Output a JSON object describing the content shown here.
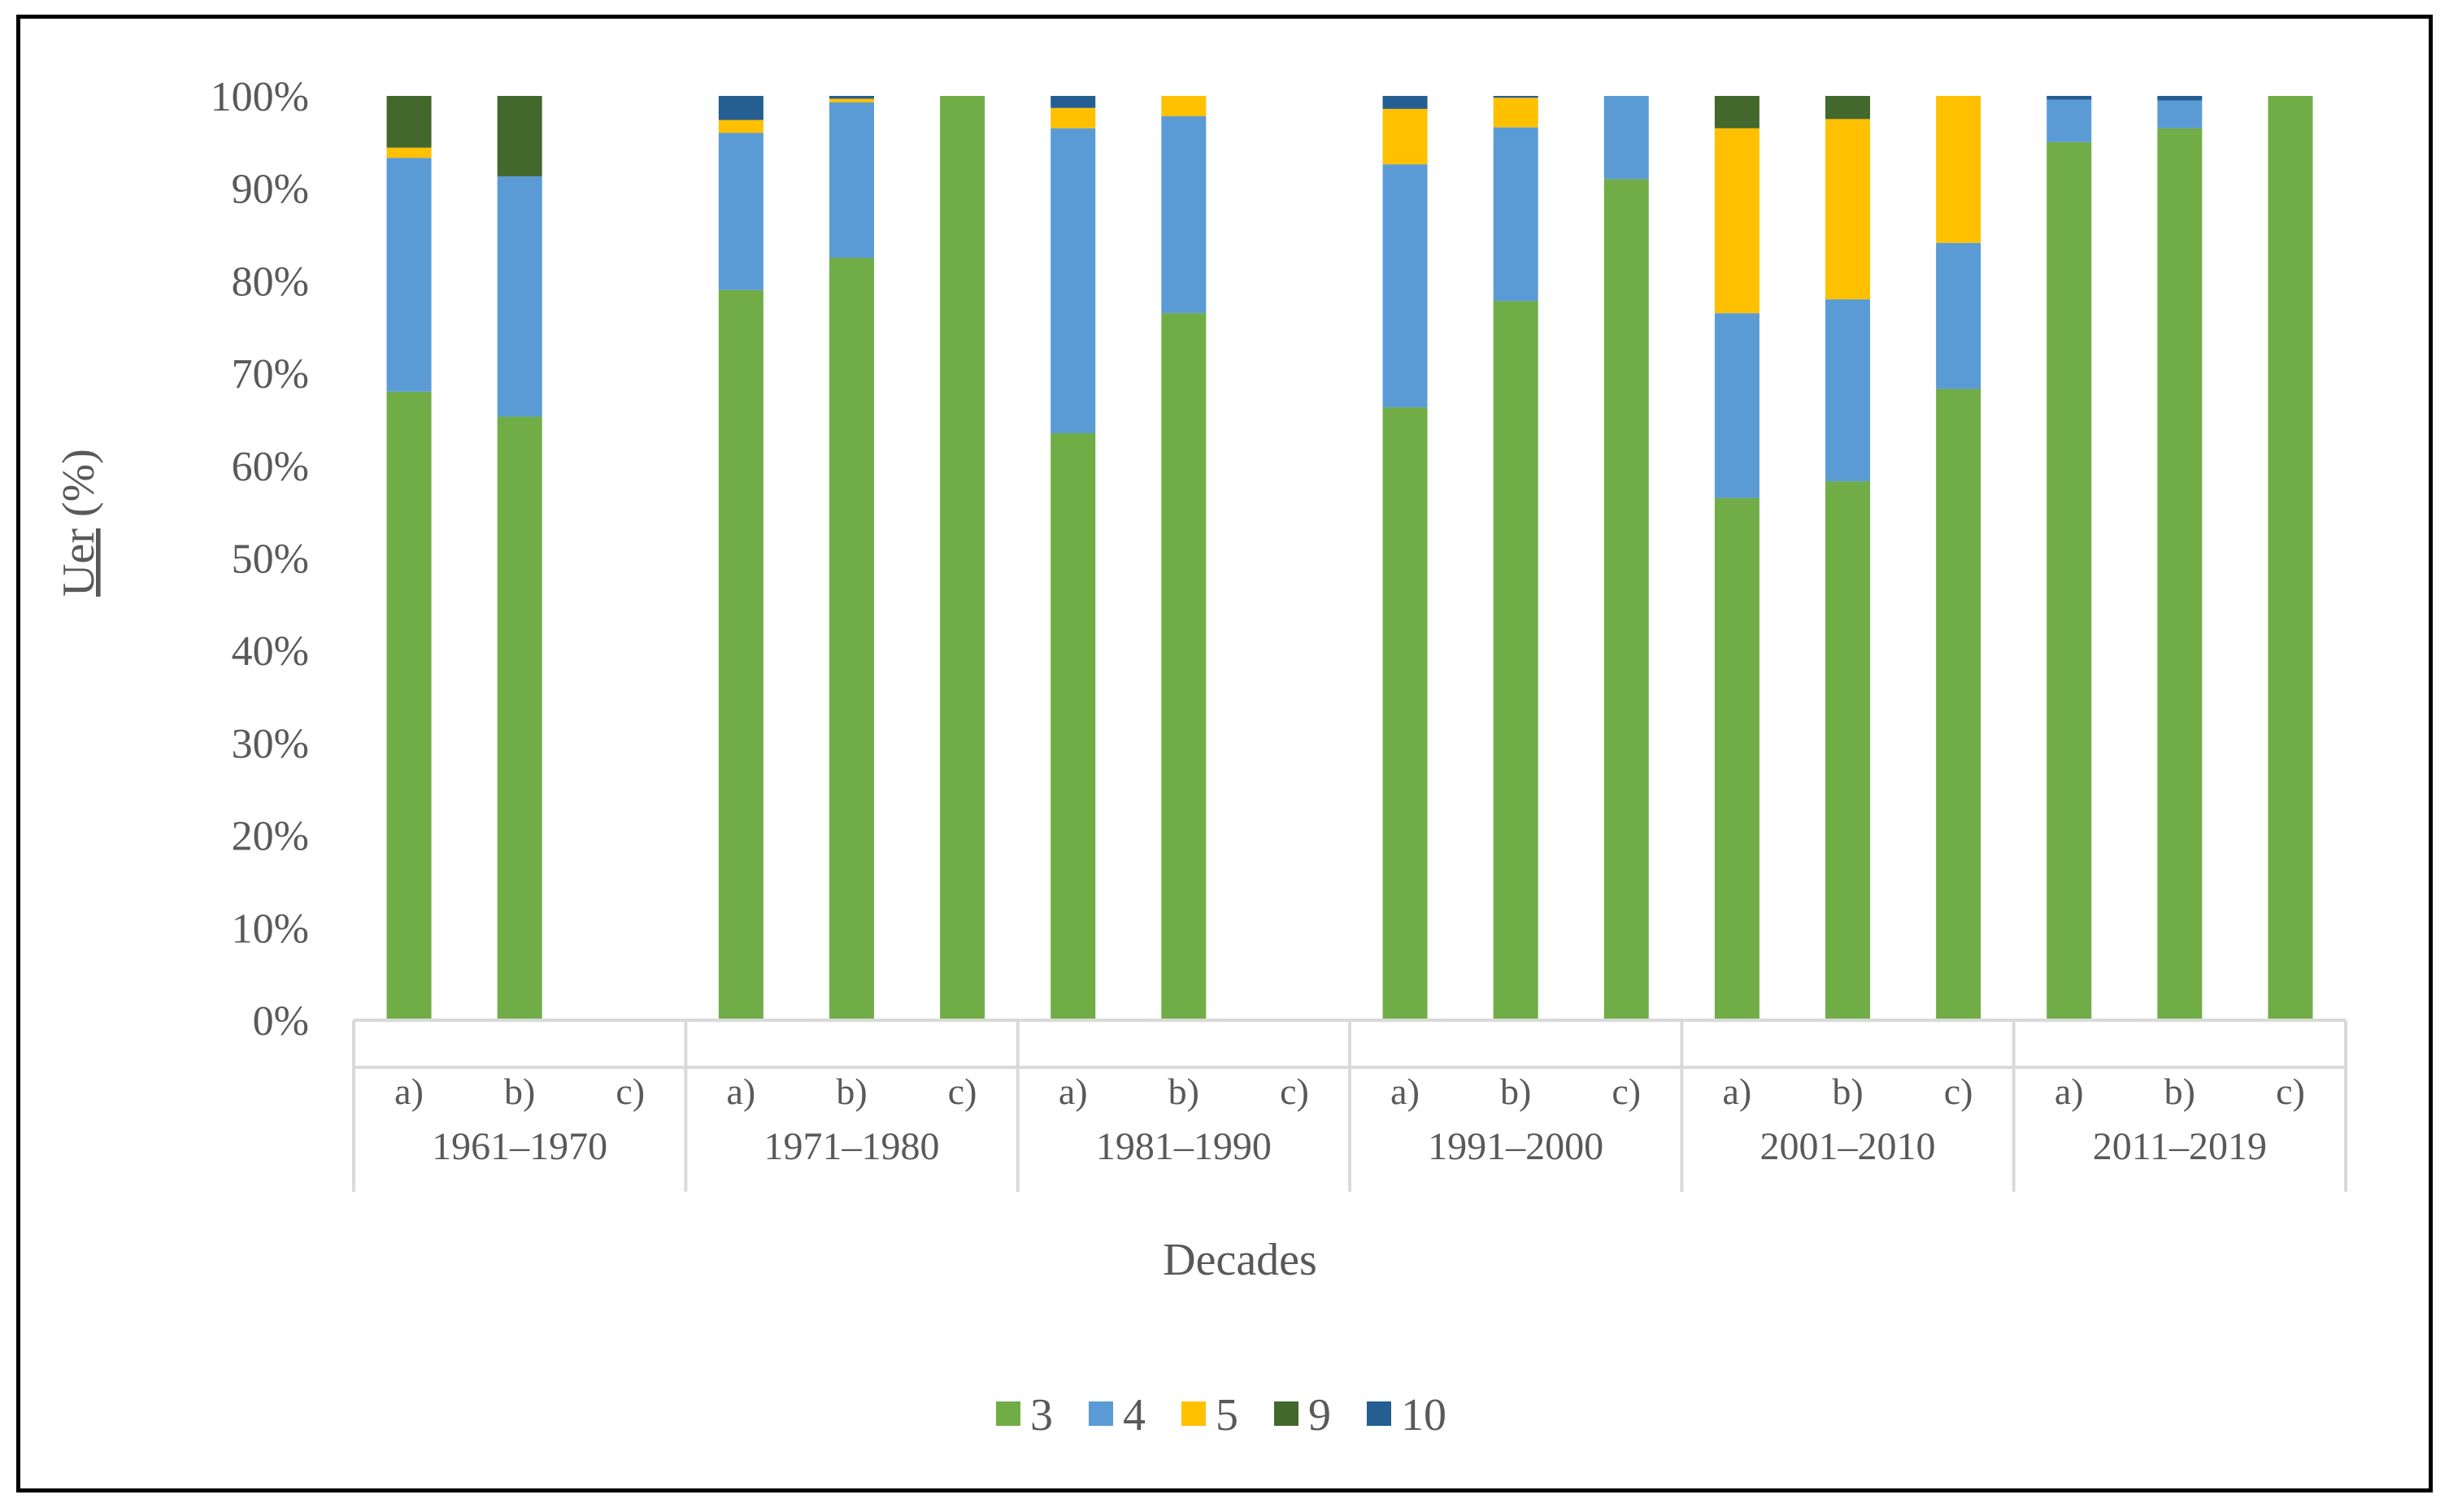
{
  "chart_data": {
    "type": "bar",
    "stacked": "percent",
    "title": "",
    "xlabel": "Decades",
    "ylabel_underlined": "Uer",
    "ylabel_rest": " (%)",
    "ylim": [
      0,
      100
    ],
    "y_ticks": [
      "0%",
      "10%",
      "20%",
      "30%",
      "40%",
      "50%",
      "60%",
      "70%",
      "80%",
      "90%",
      "100%"
    ],
    "groups": [
      {
        "label": "1961–1970",
        "subcategories": [
          "a)",
          "b)",
          "c)"
        ]
      },
      {
        "label": "1971–1980",
        "subcategories": [
          "a)",
          "b)",
          "c)"
        ]
      },
      {
        "label": "1981–1990",
        "subcategories": [
          "a)",
          "b)",
          "c)"
        ]
      },
      {
        "label": "1991–2000",
        "subcategories": [
          "a)",
          "b)",
          "c)"
        ]
      },
      {
        "label": "2001–2010",
        "subcategories": [
          "a)",
          "b)",
          "c)"
        ]
      },
      {
        "label": "2011–2019",
        "subcategories": [
          "a)",
          "b)",
          "c)"
        ]
      }
    ],
    "series": [
      {
        "name": "3",
        "color": "#70AD47",
        "values": [
          68,
          65.3,
          0,
          79,
          82.5,
          100,
          63.5,
          76.5,
          0,
          66.3,
          77.8,
          91,
          56.5,
          58.3,
          68.3,
          95,
          96.5,
          100
        ]
      },
      {
        "name": "4",
        "color": "#5B9BD5",
        "values": [
          25.3,
          26,
          0,
          17,
          16.8,
          0,
          33,
          21.3,
          0,
          26.3,
          18.8,
          9,
          20,
          19.7,
          15.8,
          4.6,
          3,
          0
        ]
      },
      {
        "name": "5",
        "color": "#FFC000",
        "values": [
          1.1,
          0,
          0,
          1.4,
          0.4,
          0,
          2.2,
          2.2,
          0,
          6,
          3.2,
          0,
          20,
          19.5,
          15.9,
          0,
          0,
          0
        ]
      },
      {
        "name": "9",
        "color": "#43682B",
        "values": [
          5.6,
          8.7,
          0,
          0,
          0,
          0,
          0,
          0,
          0,
          0,
          0,
          0,
          3.5,
          2.5,
          0,
          0,
          0,
          0
        ]
      },
      {
        "name": "10",
        "color": "#255E91",
        "values": [
          0,
          0,
          0,
          2.6,
          0.3,
          0,
          1.3,
          0,
          0,
          1.4,
          0.2,
          0,
          0,
          0,
          0,
          0.4,
          0.5,
          0
        ]
      }
    ],
    "legend_position": "bottom-center",
    "grid": false
  }
}
